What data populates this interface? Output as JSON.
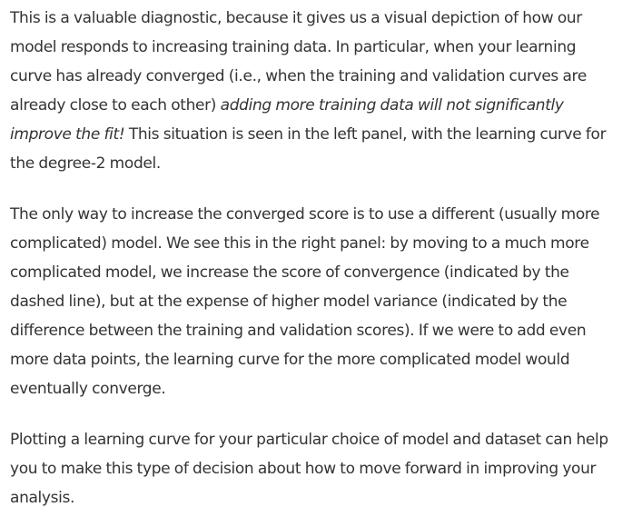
{
  "paragraphs": [
    {
      "lines": [
        [
          "This is a valuable diagnostic, because it gives us a visual depiction of how our",
          "",
          ""
        ],
        [
          "model responds to increasing training data. In particular, when your learning",
          "",
          ""
        ],
        [
          "curve has already converged (i.e., when the training and validation curves are",
          "",
          ""
        ],
        [
          "already close to each other) ",
          "adding more training data will not significantly",
          ""
        ],
        [
          "",
          "improve the fit!",
          " This situation is seen in the left panel, with the learning curve for"
        ],
        [
          "the degree-2 model.",
          "",
          ""
        ]
      ]
    },
    {
      "lines": [
        [
          "The only way to increase the converged score is to use a different (usually more",
          "",
          ""
        ],
        [
          "complicated) model. We see this in the right panel: by moving to a much more",
          "",
          ""
        ],
        [
          "complicated model, we increase the score of convergence (indicated by the",
          "",
          ""
        ],
        [
          "dashed line), but at the expense of higher model variance (indicated by the",
          "",
          ""
        ],
        [
          "difference between the training and validation scores). If we were to add even",
          "",
          ""
        ],
        [
          "more data points, the learning curve for the more complicated model would",
          "",
          ""
        ],
        [
          "eventually converge.",
          "",
          ""
        ]
      ]
    },
    {
      "lines": [
        [
          "Plotting a learning curve for your particular choice of model and dataset can help",
          "",
          ""
        ],
        [
          "you to make this type of decision about how to move forward in improving your",
          "",
          ""
        ],
        [
          "analysis.",
          "",
          ""
        ]
      ]
    }
  ]
}
